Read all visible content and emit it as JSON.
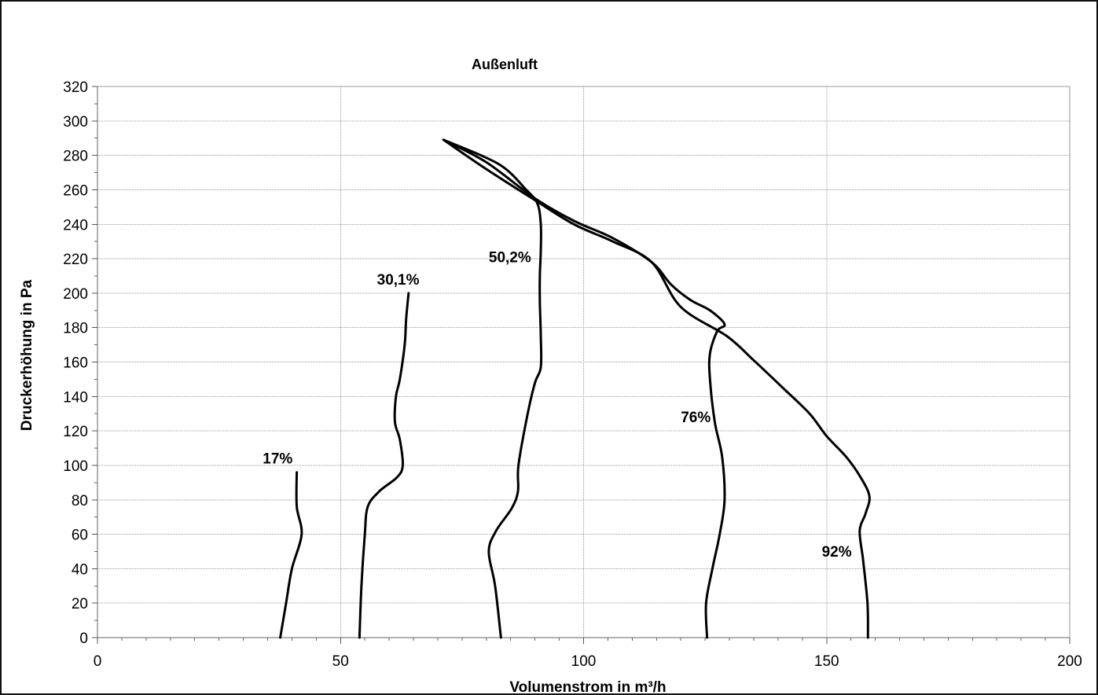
{
  "chart_data": {
    "type": "line",
    "title": "Außenluft",
    "xlabel": "Volumenstrom in m³/h",
    "ylabel": "Druckerhöhung in Pa",
    "xlim": [
      0,
      200
    ],
    "ylim": [
      0,
      320
    ],
    "xticks": [
      "0",
      "50",
      "100",
      "150",
      "200"
    ],
    "yticks": [
      "0",
      "20",
      "40",
      "60",
      "80",
      "100",
      "120",
      "140",
      "160",
      "180",
      "200",
      "220",
      "240",
      "260",
      "280",
      "300",
      "320"
    ],
    "grid": true,
    "legend": "none",
    "colors": {
      "line": "#000000",
      "grid": "#9a9a9a",
      "frame": "#111111"
    },
    "series": [
      {
        "name": "17%",
        "points": [
          [
            37.6,
            0
          ],
          [
            38.8,
            20
          ],
          [
            40.0,
            40
          ],
          [
            42.0,
            60
          ],
          [
            41.0,
            76
          ],
          [
            41.0,
            96
          ]
        ]
      },
      {
        "name": "30,1%",
        "points": [
          [
            53.9,
            0
          ],
          [
            54.3,
            30
          ],
          [
            55.0,
            60
          ],
          [
            55.6,
            76
          ],
          [
            58.0,
            85
          ],
          [
            61.6,
            93
          ],
          [
            62.8,
            100
          ],
          [
            62.2,
            115
          ],
          [
            61.2,
            125
          ],
          [
            61.4,
            140
          ],
          [
            62.2,
            150
          ],
          [
            63.2,
            170
          ],
          [
            63.5,
            185
          ],
          [
            64.0,
            200
          ]
        ]
      },
      {
        "name": "50,2%",
        "points": [
          [
            83.0,
            0
          ],
          [
            81.8,
            30
          ],
          [
            80.5,
            50
          ],
          [
            82.0,
            62
          ],
          [
            85.2,
            75
          ],
          [
            86.5,
            85
          ],
          [
            86.6,
            100
          ],
          [
            88.5,
            130
          ],
          [
            90.0,
            148
          ],
          [
            91.2,
            157
          ],
          [
            91.2,
            175
          ],
          [
            91.0,
            195
          ],
          [
            91.0,
            210
          ],
          [
            91.2,
            225
          ],
          [
            91.2,
            240
          ],
          [
            90.5,
            252
          ],
          [
            88.2,
            260
          ],
          [
            82.5,
            275
          ],
          [
            71.2,
            289
          ]
        ]
      },
      {
        "name": "76%",
        "points": [
          [
            125.4,
            0
          ],
          [
            125.2,
            20
          ],
          [
            126.5,
            40
          ],
          [
            128.0,
            60
          ],
          [
            129.0,
            80
          ],
          [
            128.5,
            105
          ],
          [
            127.0,
            125
          ],
          [
            126.0,
            150
          ],
          [
            126.0,
            165
          ],
          [
            127.5,
            178
          ],
          [
            129.0,
            182
          ],
          [
            126.0,
            190
          ],
          [
            122.0,
            196
          ],
          [
            118.0,
            205
          ],
          [
            114.0,
            218
          ],
          [
            106.0,
            232
          ],
          [
            98.0,
            242
          ],
          [
            90.0,
            255
          ],
          [
            80.0,
            276
          ],
          [
            71.2,
            289
          ]
        ]
      },
      {
        "name": "92%",
        "points": [
          [
            158.5,
            0
          ],
          [
            158.4,
            20
          ],
          [
            157.5,
            45
          ],
          [
            156.8,
            62
          ],
          [
            158.0,
            72
          ],
          [
            158.8,
            82
          ],
          [
            157.0,
            93
          ],
          [
            154.0,
            105
          ],
          [
            150.0,
            117
          ],
          [
            146.5,
            130
          ],
          [
            141.0,
            145
          ],
          [
            135.0,
            161
          ],
          [
            129.5,
            175
          ],
          [
            120.0,
            192
          ],
          [
            114.0,
            218
          ],
          [
            106.0,
            230
          ],
          [
            98.0,
            240
          ],
          [
            90.0,
            254
          ],
          [
            80.0,
            272
          ],
          [
            71.2,
            289
          ]
        ]
      }
    ]
  }
}
